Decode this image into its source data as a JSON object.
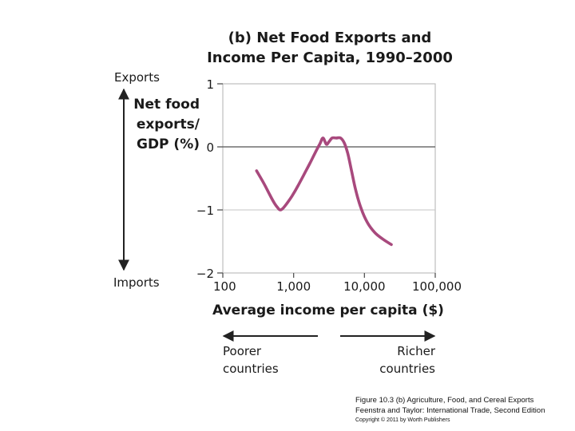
{
  "chart_data": {
    "type": "line",
    "title": "(b) Net Food Exports and",
    "subtitle": "Income Per Capita, 1990–2000",
    "xlabel": "Average income per capita ($)",
    "ylabel_lines": [
      "Net food",
      "exports/",
      "GDP (%)"
    ],
    "xscale": "log",
    "xlim": [
      100,
      100000
    ],
    "ylim": [
      -2,
      1
    ],
    "xticks": [
      100,
      1000,
      10000,
      100000
    ],
    "xtick_labels": [
      "100",
      "1,000",
      "10,000",
      "100,000"
    ],
    "yticks": [
      1,
      0,
      -1,
      -2
    ],
    "ytick_labels": [
      "1",
      "0",
      "−1",
      "−2"
    ],
    "grid": "horizontal",
    "series": [
      {
        "color": "#a8497d",
        "x": [
          300,
          380,
          460,
          540,
          600,
          640,
          700,
          800,
          950,
          1150,
          1400,
          1700,
          2000,
          2350,
          2600,
          2900,
          3150,
          3500,
          4000,
          4600,
          5200,
          5800,
          6500,
          7500,
          9000,
          11000,
          14000,
          18000,
          24000
        ],
        "y": [
          -0.38,
          -0.58,
          -0.76,
          -0.9,
          -0.97,
          -1.0,
          -0.98,
          -0.9,
          -0.78,
          -0.62,
          -0.44,
          -0.26,
          -0.1,
          0.05,
          0.14,
          0.04,
          0.08,
          0.14,
          0.14,
          0.14,
          0.06,
          -0.1,
          -0.35,
          -0.68,
          -0.98,
          -1.2,
          -1.36,
          -1.46,
          -1.55
        ]
      }
    ],
    "annotations": {
      "exports": "Exports",
      "imports": "Imports",
      "poorer": [
        "Poorer",
        "countries"
      ],
      "richer": [
        "Richer",
        "countries"
      ]
    }
  },
  "caption": {
    "line1": "Figure 10.3 (b) Agriculture, Food, and Cereal Exports",
    "line2": "Feenstra and Taylor: International Trade, Second Edition",
    "line3": "Copyright © 2011 by Worth Publishers"
  }
}
